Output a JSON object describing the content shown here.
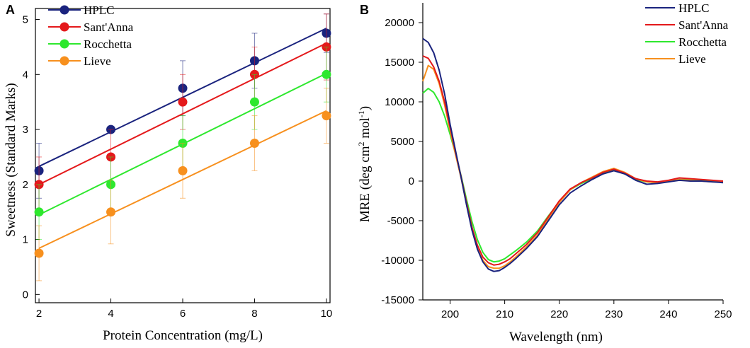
{
  "panel_a": {
    "label": "A",
    "colors": [
      "#1a237e",
      "#e4191b",
      "#2ee82e",
      "#f7901e"
    ]
  },
  "panel_b": {
    "label": "B",
    "colors": [
      "#1a237e",
      "#e4191b",
      "#2ee82e",
      "#f7901e"
    ]
  },
  "chart_data": [
    {
      "type": "scatter",
      "title": "",
      "xlabel": "Protein Concentration (mg/L)",
      "ylabel": "Sweetness (Standard Marks)",
      "xlim": [
        1.9,
        10.1
      ],
      "ylim": [
        -0.15,
        5.2
      ],
      "xticks": [
        2,
        4,
        6,
        8,
        10
      ],
      "yticks": [
        0,
        1,
        2,
        3,
        4,
        5
      ],
      "legend_position": "top-left",
      "series": [
        {
          "name": "HPLC",
          "x": [
            2,
            4,
            6,
            8,
            10
          ],
          "y": [
            2.25,
            3.0,
            3.75,
            4.25,
            4.75
          ],
          "error_lo": [
            0.5,
            0.0,
            0.5,
            0.5,
            0.35
          ],
          "error_hi": [
            0.5,
            0.0,
            0.5,
            0.5,
            0.35
          ],
          "fit": {
            "x0": 2,
            "y0": 2.33,
            "x1": 10,
            "y1": 4.84
          }
        },
        {
          "name": "Sant'Anna",
          "x": [
            2,
            4,
            6,
            8,
            10
          ],
          "y": [
            2.0,
            2.5,
            3.5,
            4.0,
            4.5
          ],
          "error_lo": [
            0.5,
            0.5,
            0.5,
            0.5,
            0.6
          ],
          "error_hi": [
            0.5,
            0.5,
            0.5,
            0.5,
            0.6
          ],
          "fit": {
            "x0": 2,
            "y0": 2.0,
            "x1": 10,
            "y1": 4.57
          }
        },
        {
          "name": "Rocchetta",
          "x": [
            2,
            4,
            6,
            8,
            10
          ],
          "y": [
            1.5,
            2.0,
            2.75,
            3.5,
            4.0
          ],
          "error_lo": [
            0.5,
            0.5,
            0.5,
            0.5,
            0.5
          ],
          "error_hi": [
            0.5,
            0.5,
            0.5,
            0.5,
            0.5
          ],
          "fit": {
            "x0": 2,
            "y0": 1.45,
            "x1": 10,
            "y1": 4.02
          }
        },
        {
          "name": "Lieve",
          "x": [
            2,
            4,
            6,
            8,
            10
          ],
          "y": [
            0.75,
            1.5,
            2.25,
            2.75,
            3.25
          ],
          "error_lo": [
            0.5,
            0.58,
            0.5,
            0.5,
            0.5
          ],
          "error_hi": [
            0.5,
            0.58,
            0.5,
            0.5,
            0.5
          ],
          "fit": {
            "x0": 2,
            "y0": 0.84,
            "x1": 10,
            "y1": 3.34
          }
        }
      ]
    },
    {
      "type": "line",
      "title": "",
      "xlabel": "Wavelength (nm)",
      "ylabel_parts": [
        "MRE (deg cm",
        "2",
        " mol",
        "-1",
        ")"
      ],
      "xlim": [
        195,
        250
      ],
      "ylim": [
        -15000,
        22500
      ],
      "xticks": [
        200,
        210,
        220,
        230,
        240,
        250
      ],
      "yticks": [
        -15000,
        -10000,
        -5000,
        0,
        5000,
        10000,
        15000,
        20000
      ],
      "legend_position": "top-right",
      "series": [
        {
          "name": "HPLC",
          "x": [
            195,
            196,
            197,
            198,
            199,
            200,
            201,
            202,
            203,
            204,
            205,
            206,
            207,
            208,
            209,
            210,
            211,
            212,
            214,
            216,
            218,
            220,
            222,
            224,
            226,
            228,
            230,
            232,
            234,
            236,
            238,
            240,
            242,
            244,
            246,
            248,
            250
          ],
          "y": [
            18000,
            17500,
            16200,
            14000,
            11000,
            7200,
            3800,
            500,
            -3000,
            -6200,
            -8600,
            -10200,
            -11100,
            -11400,
            -11300,
            -10900,
            -10400,
            -9800,
            -8500,
            -7000,
            -5000,
            -3000,
            -1500,
            -600,
            200,
            900,
            1300,
            900,
            100,
            -400,
            -300,
            -100,
            100,
            0,
            0,
            -100,
            -200
          ]
        },
        {
          "name": "Sant'Anna",
          "x": [
            195,
            196,
            197,
            198,
            199,
            200,
            201,
            202,
            203,
            204,
            205,
            206,
            207,
            208,
            209,
            210,
            211,
            212,
            214,
            216,
            218,
            220,
            222,
            224,
            226,
            228,
            230,
            232,
            234,
            236,
            238,
            240,
            242,
            244,
            246,
            248,
            250
          ],
          "y": [
            15800,
            15500,
            14400,
            12600,
            10000,
            6800,
            3600,
            600,
            -2700,
            -5800,
            -8100,
            -9600,
            -10300,
            -10600,
            -10500,
            -10200,
            -9800,
            -9200,
            -8000,
            -6500,
            -4500,
            -2500,
            -1000,
            -200,
            400,
            1100,
            1500,
            1000,
            300,
            0,
            -100,
            100,
            400,
            300,
            200,
            100,
            0
          ]
        },
        {
          "name": "Rocchetta",
          "x": [
            195,
            196,
            197,
            198,
            199,
            200,
            201,
            202,
            203,
            204,
            205,
            206,
            207,
            208,
            209,
            210,
            211,
            212,
            214,
            216,
            218,
            220,
            222,
            224,
            226,
            228,
            230,
            232,
            234,
            236,
            238,
            240,
            242,
            244,
            246,
            248,
            250
          ],
          "y": [
            11100,
            11700,
            11200,
            10000,
            8200,
            5900,
            3400,
            700,
            -2300,
            -5100,
            -7400,
            -9000,
            -9900,
            -10200,
            -10100,
            -9800,
            -9300,
            -8800,
            -7700,
            -6300,
            -4400,
            -2600,
            -1100,
            -300,
            300,
            1000,
            1400,
            900,
            200,
            -100,
            -200,
            0,
            200,
            200,
            100,
            0,
            -100
          ]
        },
        {
          "name": "Lieve",
          "x": [
            195,
            196,
            197,
            198,
            199,
            200,
            201,
            202,
            203,
            204,
            205,
            206,
            207,
            208,
            209,
            210,
            211,
            212,
            214,
            216,
            218,
            220,
            222,
            224,
            226,
            228,
            230,
            232,
            234,
            236,
            238,
            240,
            242,
            244,
            246,
            248,
            250
          ],
          "y": [
            12600,
            14600,
            14100,
            12300,
            9600,
            6400,
            3300,
            400,
            -2900,
            -6100,
            -8500,
            -10000,
            -10800,
            -11000,
            -11000,
            -10700,
            -10200,
            -9600,
            -8300,
            -6800,
            -4700,
            -2700,
            -1100,
            -200,
            500,
            1200,
            1600,
            1100,
            300,
            -100,
            -200,
            0,
            200,
            100,
            0,
            -100,
            -100
          ]
        }
      ]
    }
  ]
}
